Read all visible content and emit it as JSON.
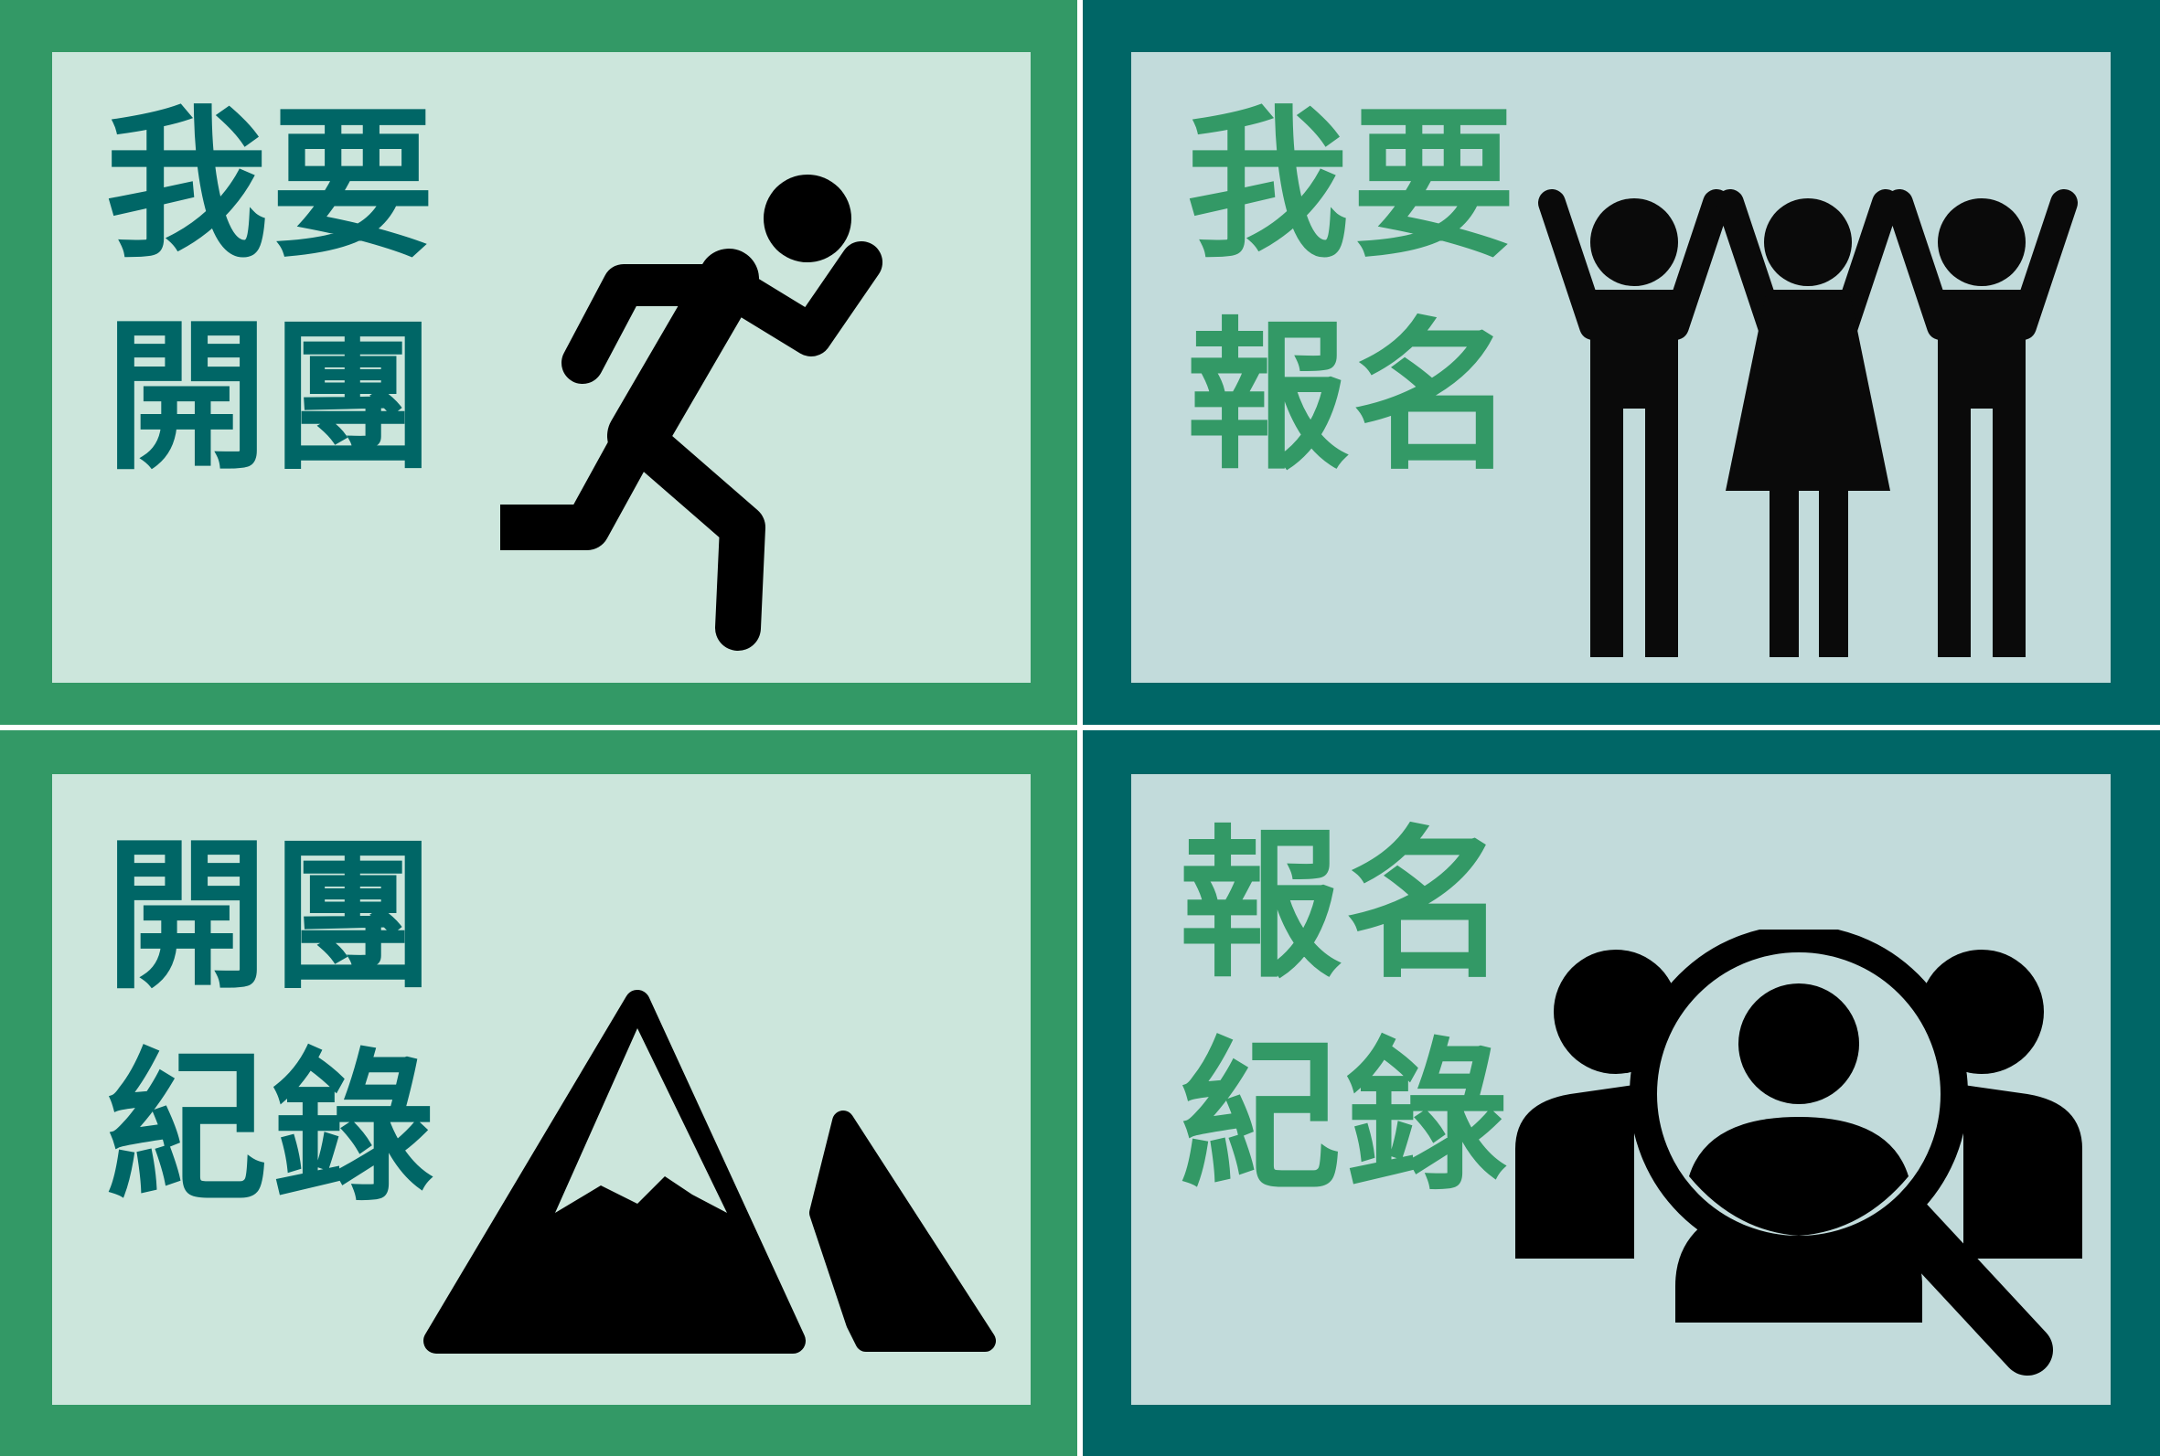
{
  "colors": {
    "green_frame": "#339966",
    "teal_frame": "#006666",
    "green_panel": "#cce6dc",
    "teal_panel": "#c2dbdb",
    "teal_text": "#006666",
    "green_text": "#339966",
    "icon": "#000000"
  },
  "tiles": [
    {
      "id": "create-group",
      "line1": "我要",
      "line2": "開團",
      "icon": "running-person-icon"
    },
    {
      "id": "sign-up",
      "line1": "我要",
      "line2": "報名",
      "icon": "group-cheering-icon"
    },
    {
      "id": "group-records",
      "line1": "開團",
      "line2": "紀錄",
      "icon": "mountain-icon"
    },
    {
      "id": "signup-records",
      "line1": "報名",
      "line2": "紀錄",
      "icon": "people-search-icon"
    }
  ]
}
